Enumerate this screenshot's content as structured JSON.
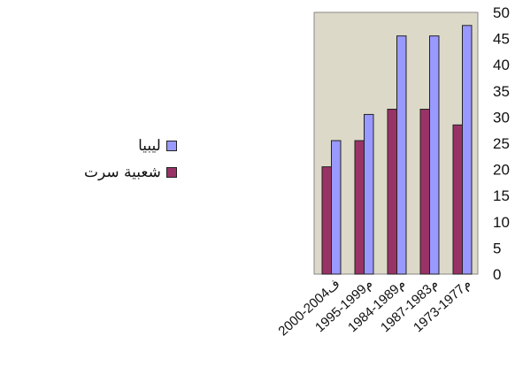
{
  "chart_data": {
    "type": "bar",
    "categories": [
      "2000-2004ف",
      "1995-1999م",
      "1984-1989م",
      "1987-1983م",
      "1973-1977م"
    ],
    "series": [
      {
        "name": "شعبية سرت",
        "values": [
          20.5,
          25.5,
          31.5,
          31.5,
          28.5
        ],
        "color": "#993366"
      },
      {
        "name": "ليبيا",
        "values": [
          25.5,
          30.5,
          45.5,
          45.5,
          47.5
        ],
        "color": "#9999ff"
      }
    ],
    "ylim": [
      0,
      50
    ],
    "yticks": [
      "0",
      "5",
      "10",
      "15",
      "20",
      "25",
      "30",
      "35",
      "40",
      "45",
      "50"
    ],
    "plot_background": "#ddd9c8",
    "legend_position": "left",
    "grid": false
  },
  "legend": {
    "items": [
      {
        "label": "ليبيا",
        "color": "#9999ff"
      },
      {
        "label": "شعبية سرت",
        "color": "#993366"
      }
    ]
  }
}
